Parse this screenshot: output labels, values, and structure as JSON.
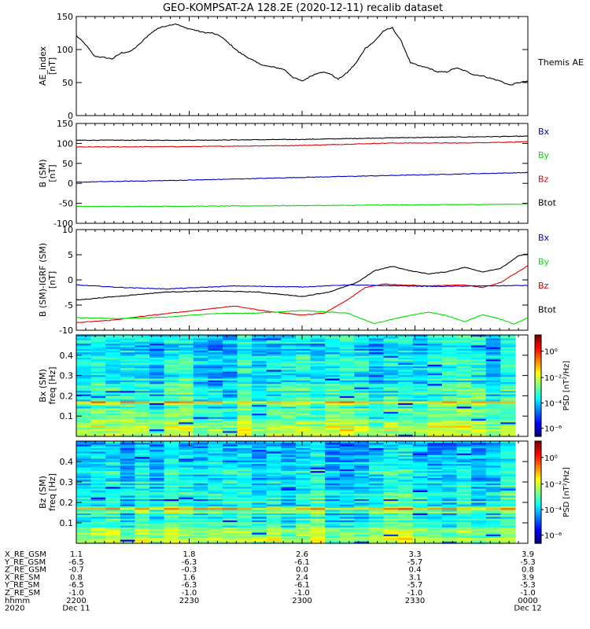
{
  "title": "GEO-KOMPSAT-2A 128.2E (2020-12-11) recalib dataset",
  "colors": {
    "black": "#000000",
    "red": "#e00000",
    "green": "#00dd00",
    "blue": "#0000cc"
  },
  "chart_data": [
    {
      "type": "line",
      "id": "ae",
      "ylabel": "AE_index",
      "yunit": "[nT]",
      "ylim": [
        0,
        150
      ],
      "yticks": [
        0,
        50,
        100,
        150
      ],
      "legend": [
        {
          "label": "Themis AE",
          "color": "black"
        }
      ],
      "series": [
        {
          "name": "Themis AE",
          "color": "black",
          "points": [
            [
              0,
              121
            ],
            [
              0.02,
              108
            ],
            [
              0.04,
              90
            ],
            [
              0.06,
              88
            ],
            [
              0.08,
              86
            ],
            [
              0.1,
              95
            ],
            [
              0.12,
              97
            ],
            [
              0.14,
              108
            ],
            [
              0.16,
              122
            ],
            [
              0.18,
              132
            ],
            [
              0.2,
              136
            ],
            [
              0.22,
              139
            ],
            [
              0.24,
              133
            ],
            [
              0.26,
              130
            ],
            [
              0.28,
              126
            ],
            [
              0.3,
              125
            ],
            [
              0.32,
              120
            ],
            [
              0.34,
              108
            ],
            [
              0.36,
              96
            ],
            [
              0.38,
              88
            ],
            [
              0.4,
              80
            ],
            [
              0.42,
              75
            ],
            [
              0.44,
              73
            ],
            [
              0.46,
              70
            ],
            [
              0.48,
              58
            ],
            [
              0.5,
              52
            ],
            [
              0.52,
              60
            ],
            [
              0.54,
              66
            ],
            [
              0.56,
              64
            ],
            [
              0.58,
              55
            ],
            [
              0.6,
              65
            ],
            [
              0.62,
              80
            ],
            [
              0.64,
              102
            ],
            [
              0.66,
              112
            ],
            [
              0.68,
              128
            ],
            [
              0.7,
              133
            ],
            [
              0.72,
              112
            ],
            [
              0.74,
              80
            ],
            [
              0.76,
              75
            ],
            [
              0.78,
              72
            ],
            [
              0.8,
              66
            ],
            [
              0.82,
              66
            ],
            [
              0.84,
              72
            ],
            [
              0.86,
              68
            ],
            [
              0.88,
              62
            ],
            [
              0.9,
              60
            ],
            [
              0.92,
              56
            ],
            [
              0.94,
              52
            ],
            [
              0.96,
              46
            ],
            [
              0.98,
              50
            ],
            [
              1,
              52
            ]
          ]
        }
      ]
    },
    {
      "type": "line",
      "id": "bsm",
      "ylabel": "B (SM)",
      "yunit": "[nT]",
      "ylim": [
        -100,
        150
      ],
      "yticks": [
        -100,
        -50,
        0,
        50,
        100,
        150
      ],
      "legend": [
        {
          "label": "Bx",
          "color": "blue"
        },
        {
          "label": "By",
          "color": "green"
        },
        {
          "label": "Bz",
          "color": "red"
        },
        {
          "label": "Btot",
          "color": "black"
        }
      ],
      "series": [
        {
          "name": "Btot",
          "color": "black",
          "points": [
            [
              0,
              108
            ],
            [
              0.25,
              108
            ],
            [
              0.5,
              110
            ],
            [
              0.7,
              114
            ],
            [
              0.85,
              116
            ],
            [
              1,
              118
            ]
          ]
        },
        {
          "name": "Bz",
          "color": "red",
          "points": [
            [
              0,
              91
            ],
            [
              0.25,
              92
            ],
            [
              0.5,
              95
            ],
            [
              0.7,
              101
            ],
            [
              0.85,
              101
            ],
            [
              1,
              104
            ]
          ]
        },
        {
          "name": "Bx",
          "color": "blue",
          "points": [
            [
              0,
              3
            ],
            [
              0.25,
              8
            ],
            [
              0.5,
              15
            ],
            [
              0.75,
              21
            ],
            [
              1,
              27
            ]
          ]
        },
        {
          "name": "By",
          "color": "green",
          "points": [
            [
              0,
              -58
            ],
            [
              0.3,
              -57
            ],
            [
              0.6,
              -55
            ],
            [
              1,
              -52
            ]
          ]
        }
      ]
    },
    {
      "type": "line",
      "id": "dbsm",
      "ylabel": "B (SM)-IGRF (SM)",
      "yunit": "[nT]",
      "ylim": [
        -10,
        10
      ],
      "yticks": [
        -10,
        -5,
        0,
        5,
        10
      ],
      "legend": [
        {
          "label": "Bx",
          "color": "blue"
        },
        {
          "label": "By",
          "color": "green"
        },
        {
          "label": "Bz",
          "color": "red"
        },
        {
          "label": "Btot",
          "color": "black"
        }
      ],
      "series": [
        {
          "name": "Btot",
          "color": "black",
          "points": [
            [
              0,
              -4
            ],
            [
              0.1,
              -3.2
            ],
            [
              0.2,
              -2.4
            ],
            [
              0.3,
              -2.2
            ],
            [
              0.4,
              -2.4
            ],
            [
              0.5,
              -3.3
            ],
            [
              0.56,
              -2.4
            ],
            [
              0.62,
              -0.6
            ],
            [
              0.66,
              1.8
            ],
            [
              0.7,
              2.7
            ],
            [
              0.74,
              1.8
            ],
            [
              0.78,
              1.2
            ],
            [
              0.82,
              1.6
            ],
            [
              0.86,
              2.5
            ],
            [
              0.9,
              1.6
            ],
            [
              0.94,
              2.3
            ],
            [
              0.98,
              4.8
            ],
            [
              1,
              5.2
            ]
          ]
        },
        {
          "name": "Bz",
          "color": "red",
          "points": [
            [
              0,
              -8.5
            ],
            [
              0.08,
              -8
            ],
            [
              0.15,
              -7.2
            ],
            [
              0.25,
              -6.2
            ],
            [
              0.35,
              -5.2
            ],
            [
              0.42,
              -6.2
            ],
            [
              0.5,
              -7
            ],
            [
              0.55,
              -6.6
            ],
            [
              0.6,
              -4
            ],
            [
              0.64,
              -1.5
            ],
            [
              0.68,
              -0.8
            ],
            [
              0.72,
              -1
            ],
            [
              0.78,
              -1.2
            ],
            [
              0.86,
              -1
            ],
            [
              0.9,
              -1.5
            ],
            [
              0.94,
              -0.5
            ],
            [
              1,
              2.8
            ]
          ]
        },
        {
          "name": "Bx",
          "color": "blue",
          "points": [
            [
              0,
              -1
            ],
            [
              0.1,
              -1.5
            ],
            [
              0.2,
              -1.8
            ],
            [
              0.35,
              -1.2
            ],
            [
              0.5,
              -1.4
            ],
            [
              0.6,
              -1
            ],
            [
              0.8,
              -1.3
            ],
            [
              1,
              -1.1
            ]
          ]
        },
        {
          "name": "By",
          "color": "green",
          "points": [
            [
              0,
              -7.5
            ],
            [
              0.1,
              -7.7
            ],
            [
              0.2,
              -7.4
            ],
            [
              0.3,
              -6.7
            ],
            [
              0.4,
              -6.6
            ],
            [
              0.5,
              -6.1
            ],
            [
              0.6,
              -6.6
            ],
            [
              0.66,
              -8.7
            ],
            [
              0.72,
              -7.4
            ],
            [
              0.78,
              -6.4
            ],
            [
              0.82,
              -7.1
            ],
            [
              0.86,
              -8.3
            ],
            [
              0.9,
              -6.9
            ],
            [
              0.94,
              -7.8
            ],
            [
              0.97,
              -8.8
            ],
            [
              1,
              -7.5
            ]
          ]
        }
      ]
    },
    {
      "type": "heatmap",
      "id": "bx_psd",
      "ylabel": "Bx (SM)",
      "yunit": "freq [Hz]",
      "ylim": [
        0,
        0.5
      ],
      "yticks": [
        0.1,
        0.2,
        0.3,
        0.4
      ],
      "colorbar": {
        "label": "PSD [nT²/Hz]",
        "ticks": [
          "10⁰",
          "10⁻²",
          "10⁻⁴",
          "10⁻⁶"
        ]
      }
    },
    {
      "type": "heatmap",
      "id": "bz_psd",
      "ylabel": "Bz (SM)",
      "yunit": "freq [Hz]",
      "ylim": [
        0,
        0.5
      ],
      "yticks": [
        0.1,
        0.2,
        0.3,
        0.4
      ],
      "colorbar": {
        "label": "PSD [nT²/Hz]",
        "ticks": [
          "10⁰",
          "10⁻²",
          "10⁻⁴",
          "10⁻⁶"
        ]
      }
    }
  ],
  "ephemeris": {
    "labels": [
      "X_RE_GSM",
      "Y_RE_GSM",
      "Z_RE_GSM",
      "X_RE_SM",
      "Y_RE_SM",
      "Z_RE_SM",
      "hhmm",
      "2020"
    ],
    "columns": [
      {
        "x": 0.0,
        "values": [
          "1.1",
          "-6.5",
          "-0.7",
          "0.8",
          "-6.5",
          "-1.0",
          "2200",
          "Dec 11"
        ]
      },
      {
        "x": 0.25,
        "values": [
          "1.8",
          "-6.3",
          "-0.3",
          "1.6",
          "-6.3",
          "-1.0",
          "2230",
          ""
        ]
      },
      {
        "x": 0.5,
        "values": [
          "2.6",
          "-6.1",
          "0.0",
          "2.4",
          "-6.1",
          "-1.0",
          "2300",
          ""
        ]
      },
      {
        "x": 0.75,
        "values": [
          "3.3",
          "-5.7",
          "0.4",
          "3.1",
          "-5.7",
          "-1.0",
          "2330",
          ""
        ]
      },
      {
        "x": 1.0,
        "values": [
          "3.9",
          "-5.3",
          "0.8",
          "3.9",
          "-5.3",
          "-1.0",
          "0000",
          "Dec 12"
        ]
      }
    ]
  }
}
